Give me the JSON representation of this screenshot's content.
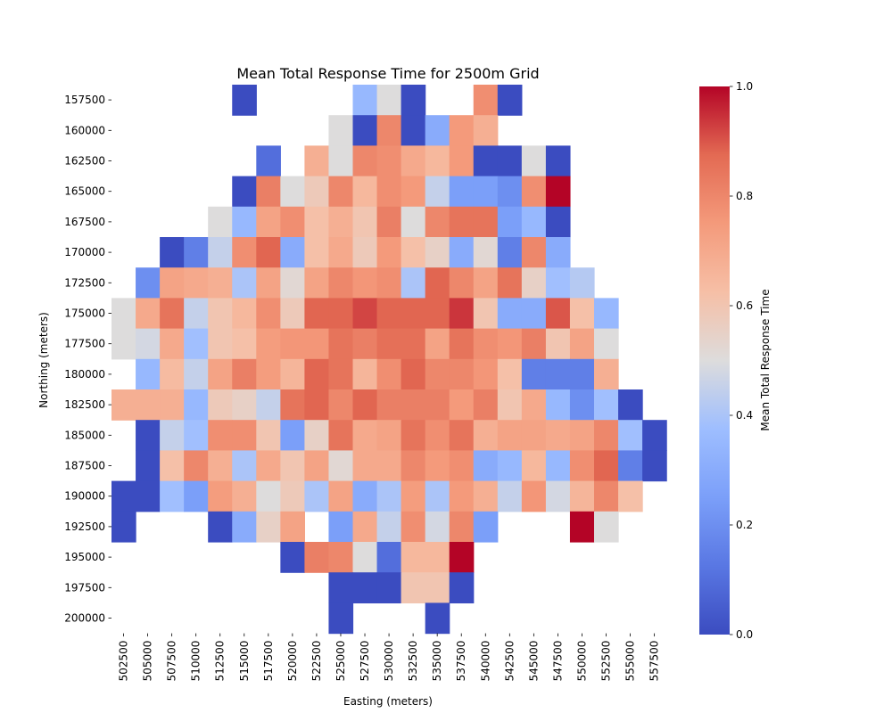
{
  "chart_data": {
    "type": "heatmap",
    "title": "Mean Total Response Time for 2500m Grid",
    "xlabel": "Easting (meters)",
    "ylabel": "Northing (meters)",
    "x": [
      "502500",
      "505000",
      "507500",
      "510000",
      "512500",
      "515000",
      "517500",
      "520000",
      "522500",
      "525000",
      "527500",
      "530000",
      "532500",
      "535000",
      "537500",
      "540000",
      "542500",
      "545000",
      "547500",
      "550000",
      "552500",
      "555000",
      "557500"
    ],
    "y": [
      "157500",
      "160000",
      "162500",
      "165000",
      "167500",
      "170000",
      "172500",
      "175000",
      "177500",
      "180000",
      "182500",
      "185000",
      "187500",
      "190000",
      "192500",
      "195000",
      "197500",
      "200000"
    ],
    "values": [
      [
        null,
        null,
        null,
        null,
        null,
        0.0,
        null,
        null,
        null,
        null,
        0.35,
        0.5,
        0.0,
        null,
        null,
        0.78,
        0.0,
        null,
        null,
        null,
        null,
        null,
        null
      ],
      [
        null,
        null,
        null,
        null,
        null,
        null,
        null,
        null,
        null,
        0.5,
        0.0,
        0.8,
        0.0,
        0.3,
        0.75,
        0.68,
        null,
        null,
        null,
        null,
        null,
        null,
        null
      ],
      [
        null,
        null,
        null,
        null,
        null,
        null,
        0.1,
        null,
        0.68,
        0.5,
        0.8,
        0.78,
        0.7,
        0.65,
        0.75,
        0.0,
        0.0,
        0.5,
        0.0,
        null,
        null,
        null,
        null
      ],
      [
        null,
        null,
        null,
        null,
        null,
        0.0,
        0.82,
        0.5,
        0.58,
        0.8,
        0.65,
        0.78,
        0.75,
        0.45,
        0.25,
        0.25,
        0.2,
        0.78,
        1.0,
        null,
        null,
        null,
        null
      ],
      [
        null,
        null,
        null,
        null,
        0.5,
        0.35,
        0.72,
        0.78,
        0.62,
        0.68,
        0.6,
        0.82,
        0.5,
        0.8,
        0.85,
        0.85,
        0.25,
        0.35,
        0.0,
        null,
        null,
        null,
        null
      ],
      [
        null,
        null,
        0.0,
        0.15,
        0.45,
        0.78,
        0.88,
        0.3,
        0.62,
        0.7,
        0.58,
        0.75,
        0.62,
        0.55,
        0.3,
        0.52,
        0.15,
        0.8,
        0.3,
        null,
        null,
        null,
        null
      ],
      [
        null,
        0.2,
        0.72,
        0.7,
        0.68,
        0.4,
        0.72,
        0.52,
        0.72,
        0.8,
        0.76,
        0.78,
        0.4,
        0.88,
        0.8,
        0.72,
        0.85,
        0.55,
        0.38,
        0.42,
        null,
        null,
        null
      ],
      [
        0.5,
        0.7,
        0.85,
        0.45,
        0.6,
        0.65,
        0.78,
        0.58,
        0.88,
        0.88,
        0.92,
        0.88,
        0.88,
        0.88,
        0.94,
        0.6,
        0.3,
        0.3,
        0.9,
        0.62,
        0.35,
        null,
        null
      ],
      [
        0.5,
        0.48,
        0.7,
        0.38,
        0.6,
        0.62,
        0.74,
        0.76,
        0.76,
        0.85,
        0.82,
        0.86,
        0.86,
        0.72,
        0.85,
        0.78,
        0.76,
        0.82,
        0.6,
        0.72,
        0.5,
        null,
        null
      ],
      [
        null,
        0.35,
        0.64,
        0.45,
        0.72,
        0.82,
        0.74,
        0.66,
        0.88,
        0.85,
        0.66,
        0.78,
        0.88,
        0.8,
        0.8,
        0.76,
        0.62,
        0.15,
        0.15,
        0.15,
        0.68,
        null,
        null
      ],
      [
        0.68,
        0.68,
        0.68,
        0.35,
        0.58,
        0.55,
        0.45,
        0.85,
        0.88,
        0.8,
        0.88,
        0.82,
        0.82,
        0.82,
        0.75,
        0.82,
        0.6,
        0.7,
        0.35,
        0.2,
        0.38,
        0.0,
        null
      ],
      [
        null,
        0.0,
        0.45,
        0.38,
        0.78,
        0.78,
        0.6,
        0.25,
        0.55,
        0.85,
        0.7,
        0.72,
        0.85,
        0.78,
        0.85,
        0.68,
        0.72,
        0.72,
        0.7,
        0.72,
        0.8,
        0.38,
        0.0
      ],
      [
        null,
        0.0,
        0.62,
        0.8,
        0.68,
        0.4,
        0.7,
        0.6,
        0.72,
        0.52,
        0.7,
        0.7,
        0.8,
        0.75,
        0.78,
        0.3,
        0.35,
        0.65,
        0.35,
        0.78,
        0.88,
        0.15,
        0.0
      ],
      [
        0.0,
        0.0,
        0.38,
        0.25,
        0.74,
        0.68,
        0.5,
        0.58,
        0.4,
        0.72,
        0.3,
        0.4,
        0.74,
        0.4,
        0.75,
        0.68,
        0.45,
        0.76,
        0.48,
        0.66,
        0.8,
        0.62,
        null
      ],
      [
        0.0,
        null,
        null,
        null,
        0.0,
        0.3,
        0.55,
        0.72,
        null,
        0.25,
        0.7,
        0.45,
        0.78,
        0.48,
        0.8,
        0.25,
        null,
        null,
        null,
        1.0,
        0.5,
        null,
        null
      ],
      [
        null,
        null,
        null,
        null,
        null,
        null,
        null,
        0.0,
        0.82,
        0.8,
        0.5,
        0.1,
        0.65,
        0.65,
        1.0,
        null,
        null,
        null,
        null,
        null,
        null,
        null,
        null
      ],
      [
        null,
        null,
        null,
        null,
        null,
        null,
        null,
        null,
        null,
        0.0,
        0.0,
        0.0,
        0.6,
        0.6,
        0.0,
        null,
        null,
        null,
        null,
        null,
        null,
        null,
        null
      ],
      [
        null,
        null,
        null,
        null,
        null,
        null,
        null,
        null,
        null,
        0.0,
        null,
        null,
        null,
        0.0,
        null,
        null,
        null,
        null,
        null,
        null,
        null,
        null,
        null
      ]
    ],
    "colormap": "coolwarm",
    "colorbar": {
      "label": "Mean Total Response Time",
      "range": [
        0.0,
        1.0
      ],
      "ticks": [
        "0.0",
        "0.2",
        "0.4",
        "0.6",
        "0.8",
        "1.0"
      ]
    },
    "grid": false,
    "legend": "colorbar-right"
  }
}
